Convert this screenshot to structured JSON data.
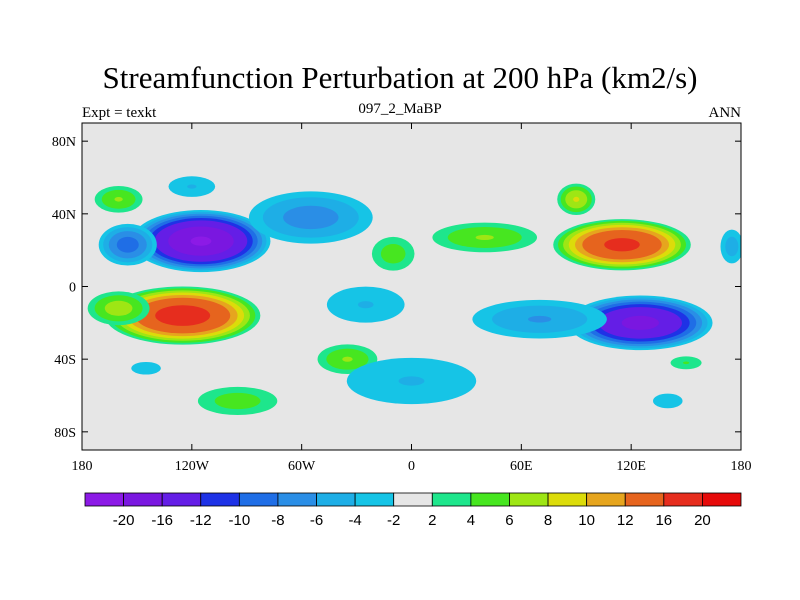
{
  "chart_data": {
    "type": "heatmap",
    "title": "Streamfunction Perturbation at 200 hPa (km2/s)",
    "left_label": "Expt = texkt",
    "center_label": "097_2_MaBP",
    "right_label": "ANN",
    "x_ticks": [
      "180",
      "120W",
      "60W",
      "0",
      "60E",
      "120E",
      "180"
    ],
    "x_tick_values": [
      -180,
      -120,
      -60,
      0,
      60,
      120,
      180
    ],
    "y_ticks": [
      "80N",
      "40N",
      "0",
      "40S",
      "80S"
    ],
    "y_tick_values": [
      80,
      40,
      0,
      -40,
      -80
    ],
    "xlim": [
      -180,
      180
    ],
    "ylim": [
      -90,
      90
    ],
    "background_color": "#e6e6e6",
    "colorbar": {
      "levels": [
        -20,
        -16,
        -12,
        -10,
        -8,
        -6,
        -4,
        -2,
        2,
        4,
        6,
        8,
        10,
        12,
        16,
        20
      ],
      "labels": [
        "-20",
        "-16",
        "-12",
        "-10",
        "-8",
        "-6",
        "-4",
        "-2",
        "2",
        "4",
        "6",
        "8",
        "10",
        "12",
        "16",
        "20"
      ],
      "colors": [
        "#8c1ae6",
        "#7a17e0",
        "#641ee6",
        "#1e32e6",
        "#1f6ee6",
        "#2a8ee6",
        "#1eaee6",
        "#16c4e6",
        "#e6e6e6",
        "#1ee68c",
        "#47e620",
        "#9ee614",
        "#dcdc0a",
        "#e6a51e",
        "#e6641e",
        "#e62d1e",
        "#e60a0a"
      ]
    },
    "features": [
      {
        "lon": -115,
        "lat": 25,
        "rx": 40,
        "ry": 18,
        "peak": -20
      },
      {
        "lon": -155,
        "lat": 23,
        "rx": 18,
        "ry": 13,
        "peak": -9
      },
      {
        "lon": -160,
        "lat": 48,
        "rx": 16,
        "ry": 9,
        "peak": 6
      },
      {
        "lon": -125,
        "lat": -16,
        "rx": 45,
        "ry": 17,
        "peak": 18
      },
      {
        "lon": -160,
        "lat": -12,
        "rx": 20,
        "ry": 11,
        "peak": 7
      },
      {
        "lon": -120,
        "lat": 55,
        "rx": 12,
        "ry": 5,
        "peak": -3
      },
      {
        "lon": -55,
        "lat": 38,
        "rx": 40,
        "ry": 17,
        "peak": -7
      },
      {
        "lon": -10,
        "lat": 18,
        "rx": 15,
        "ry": 12,
        "peak": 5
      },
      {
        "lon": 115,
        "lat": 23,
        "rx": 40,
        "ry": 15,
        "peak": 17
      },
      {
        "lon": 40,
        "lat": 27,
        "rx": 35,
        "ry": 10,
        "peak": 6
      },
      {
        "lon": 90,
        "lat": 48,
        "rx": 12,
        "ry": 10,
        "peak": 8
      },
      {
        "lon": 175,
        "lat": 22,
        "rx": 8,
        "ry": 12,
        "peak": -5
      },
      {
        "lon": 125,
        "lat": -20,
        "rx": 42,
        "ry": 16,
        "peak": -17
      },
      {
        "lon": 70,
        "lat": -18,
        "rx": 45,
        "ry": 13,
        "peak": -6
      },
      {
        "lon": -25,
        "lat": -10,
        "rx": 30,
        "ry": 14,
        "peak": -4
      },
      {
        "lon": -35,
        "lat": -40,
        "rx": 20,
        "ry": 10,
        "peak": 6
      },
      {
        "lon": 0,
        "lat": -52,
        "rx": 50,
        "ry": 18,
        "peak": -4
      },
      {
        "lon": -145,
        "lat": -45,
        "rx": 14,
        "ry": 6,
        "peak": -3
      },
      {
        "lon": -95,
        "lat": -63,
        "rx": 28,
        "ry": 10,
        "peak": 5
      },
      {
        "lon": 140,
        "lat": -63,
        "rx": 14,
        "ry": 7,
        "peak": -3
      },
      {
        "lon": 150,
        "lat": -42,
        "rx": 12,
        "ry": 5,
        "peak": 4
      },
      {
        "lon": -120,
        "lat": 55,
        "rx": 18,
        "ry": 8,
        "peak": -4
      }
    ]
  }
}
